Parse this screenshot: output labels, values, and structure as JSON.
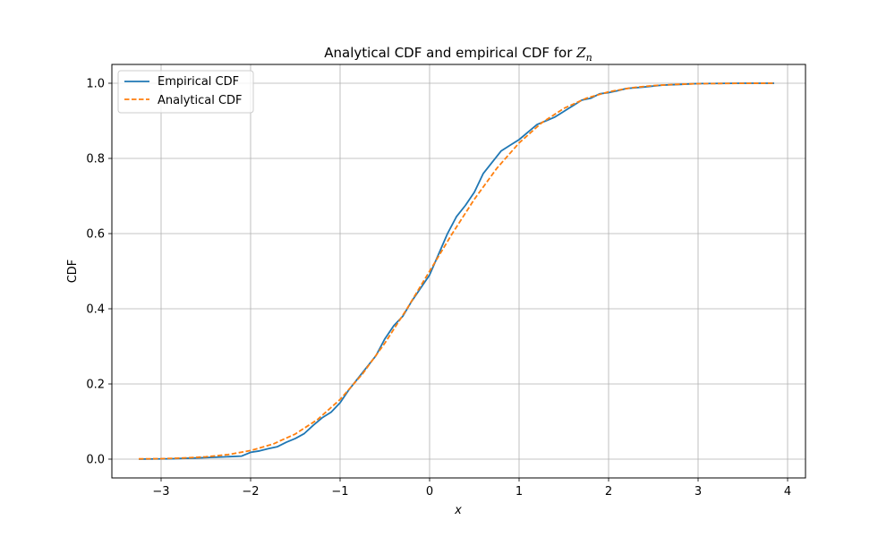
{
  "chart_data": {
    "type": "line",
    "title": "Analytical CDF and empirical CDF for ",
    "title_math_main": "Z",
    "title_math_sub": "n",
    "xlabel": "x",
    "ylabel": "CDF",
    "xlim": [
      -3.55,
      4.2
    ],
    "ylim": [
      -0.05,
      1.05
    ],
    "xticks": [
      -3,
      -2,
      -1,
      0,
      1,
      2,
      3,
      4
    ],
    "xtick_labels": [
      "−3",
      "−2",
      "−1",
      "0",
      "1",
      "2",
      "3",
      "4"
    ],
    "yticks": [
      0.0,
      0.2,
      0.4,
      0.6,
      0.8,
      1.0
    ],
    "ytick_labels": [
      "0.0",
      "0.2",
      "0.4",
      "0.6",
      "0.8",
      "1.0"
    ],
    "grid": true,
    "legend_position": "top-left",
    "series": [
      {
        "name": "Empirical CDF",
        "color": "#1f77b4",
        "style": "solid",
        "x": [
          -3.25,
          -2.9,
          -2.6,
          -2.3,
          -2.1,
          -2.0,
          -1.9,
          -1.8,
          -1.7,
          -1.6,
          -1.5,
          -1.4,
          -1.3,
          -1.2,
          -1.1,
          -1.0,
          -0.9,
          -0.8,
          -0.7,
          -0.6,
          -0.5,
          -0.4,
          -0.3,
          -0.2,
          -0.1,
          0.0,
          0.1,
          0.2,
          0.3,
          0.4,
          0.5,
          0.6,
          0.7,
          0.8,
          0.9,
          1.0,
          1.1,
          1.2,
          1.3,
          1.4,
          1.5,
          1.6,
          1.7,
          1.8,
          1.9,
          2.0,
          2.1,
          2.2,
          2.4,
          2.6,
          2.8,
          3.0,
          3.5,
          3.85
        ],
        "y": [
          0.0,
          0.001,
          0.003,
          0.006,
          0.008,
          0.018,
          0.022,
          0.028,
          0.033,
          0.045,
          0.055,
          0.068,
          0.09,
          0.11,
          0.125,
          0.15,
          0.185,
          0.215,
          0.245,
          0.275,
          0.32,
          0.355,
          0.38,
          0.42,
          0.455,
          0.49,
          0.545,
          0.6,
          0.645,
          0.675,
          0.71,
          0.76,
          0.79,
          0.82,
          0.835,
          0.85,
          0.87,
          0.89,
          0.9,
          0.91,
          0.925,
          0.94,
          0.955,
          0.96,
          0.972,
          0.975,
          0.98,
          0.986,
          0.99,
          0.995,
          0.997,
          0.999,
          1.0,
          1.0
        ]
      },
      {
        "name": "Analytical CDF",
        "color": "#ff7f0e",
        "style": "dashed",
        "x": [
          -3.25,
          -3.0,
          -2.75,
          -2.5,
          -2.25,
          -2.0,
          -1.75,
          -1.5,
          -1.25,
          -1.0,
          -0.75,
          -0.5,
          -0.25,
          0.0,
          0.25,
          0.5,
          0.75,
          1.0,
          1.25,
          1.5,
          1.75,
          2.0,
          2.25,
          2.5,
          2.75,
          3.0,
          3.25,
          3.5,
          3.85
        ],
        "y": [
          0.0006,
          0.0013,
          0.003,
          0.0062,
          0.0122,
          0.0228,
          0.0401,
          0.0668,
          0.1056,
          0.1587,
          0.2266,
          0.3085,
          0.4013,
          0.5,
          0.5987,
          0.6915,
          0.7734,
          0.8413,
          0.8944,
          0.9332,
          0.9599,
          0.9772,
          0.9878,
          0.9938,
          0.997,
          0.9987,
          0.9994,
          0.9998,
          1.0
        ]
      }
    ]
  }
}
